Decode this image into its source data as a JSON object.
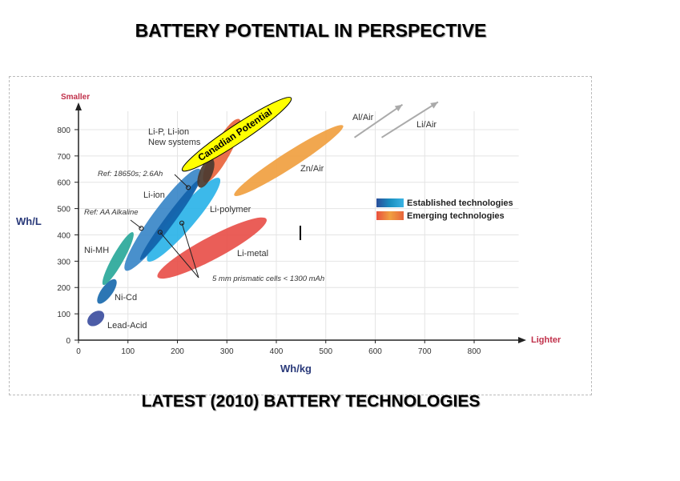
{
  "title": "BATTERY POTENTIAL IN PERSPECTIVE",
  "caption": "LATEST (2010) BATTERY TECHNOLOGIES",
  "chart_data": {
    "type": "scatter",
    "xlabel": "Wh/kg",
    "ylabel": "Wh/L",
    "x_direction_label": "Lighter",
    "y_direction_label": "Smaller",
    "xlim": [
      0,
      900
    ],
    "ylim": [
      0,
      880
    ],
    "xticks": [
      "0",
      "100",
      "200",
      "300",
      "400",
      "500",
      "600",
      "700",
      "800"
    ],
    "yticks": [
      "0",
      "100",
      "200",
      "300",
      "400",
      "500",
      "600",
      "700",
      "800"
    ],
    "grid": true,
    "legend_placement": "right",
    "legend": [
      {
        "label": "Established technologies",
        "colors": [
          "#2b4e9a",
          "#1a8fc0",
          "#3ab3e3"
        ]
      },
      {
        "label": "Emerging technologies",
        "colors": [
          "#e8503e",
          "#f0a040",
          "#e8643c"
        ]
      }
    ],
    "regions": [
      {
        "name": "Li-ion",
        "group": "established",
        "from": [
          95,
          265
        ],
        "to": [
          245,
          650
        ],
        "color": "#3a87c8"
      },
      {
        "name": "Li-polymer",
        "group": "established",
        "from": [
          140,
          300
        ],
        "to": [
          285,
          615
        ],
        "color": "#2bb3e8"
      },
      {
        "name": "Li-ion core",
        "group": "established",
        "from": [
          125,
          305
        ],
        "to": [
          245,
          610
        ],
        "color": "#1262aa"
      },
      {
        "name": "Lead-Acid",
        "group": "established",
        "from": [
          20,
          60
        ],
        "to": [
          50,
          105
        ],
        "color": "#3d4fa0"
      },
      {
        "name": "Ni-Cd",
        "group": "established",
        "from": [
          40,
          140
        ],
        "to": [
          75,
          230
        ],
        "color": "#1a6aae"
      },
      {
        "name": "Ni-MH",
        "group": "established",
        "from": [
          50,
          210
        ],
        "to": [
          110,
          410
        ],
        "color": "#2aa89a"
      },
      {
        "name": "Li-P, Li-ion New systems",
        "group": "emerging",
        "from": [
          255,
          600
        ],
        "to": [
          325,
          840
        ],
        "color": "#e8643c"
      },
      {
        "name": "Ref: 18650s high-end",
        "group": "emerging",
        "from": [
          245,
          580
        ],
        "to": [
          270,
          690
        ],
        "color": "#4a3a30"
      },
      {
        "name": "Li-metal",
        "group": "emerging",
        "from": [
          160,
          240
        ],
        "to": [
          380,
          460
        ],
        "color": "#e8504a"
      },
      {
        "name": "Zn/Air",
        "group": "emerging",
        "from": [
          315,
          550
        ],
        "to": [
          535,
          815
        ],
        "color": "#f0a040"
      },
      {
        "name": "Canadian Potential",
        "group": "highlight",
        "from": [
          210,
          645
        ],
        "to": [
          430,
          920
        ],
        "color": "#ffff00"
      }
    ],
    "arrows": [
      {
        "name": "Al/Air",
        "from": [
          558,
          770
        ],
        "to": [
          655,
          895
        ]
      },
      {
        "name": "Li/Air",
        "from": [
          613,
          770
        ],
        "to": [
          727,
          905
        ]
      }
    ],
    "reference_points": [
      {
        "label": "Ref: 18650s; 2.6Ah",
        "x": 222,
        "y": 580
      },
      {
        "label": "Ref: AA Alkaline",
        "x": 127,
        "y": 425
      },
      {
        "label": "5 mm prismatic cells < 1300 mAh",
        "x": 165,
        "y": 410
      },
      {
        "label": "5 mm prismatic cells < 1300 mAh",
        "x": 209,
        "y": 445
      }
    ],
    "labels": {
      "lead_acid": "Lead-Acid",
      "ni_cd": "Ni-Cd",
      "ni_mh": "Ni-MH",
      "li_ion": "Li-ion",
      "li_polymer": "Li-polymer",
      "li_metal": "Li-metal",
      "new_systems_1": "Li-P, Li-ion",
      "new_systems_2": "New systems",
      "zn_air": "Zn/Air",
      "al_air": "Al/Air",
      "li_air": "Li/Air",
      "canadian": "Canadian Potential",
      "ref_18650": "Ref: 18650s; 2.6Ah",
      "ref_aa": "Ref: AA Alkaline",
      "prismatic": "5 mm prismatic cells < 1300 mAh"
    }
  }
}
